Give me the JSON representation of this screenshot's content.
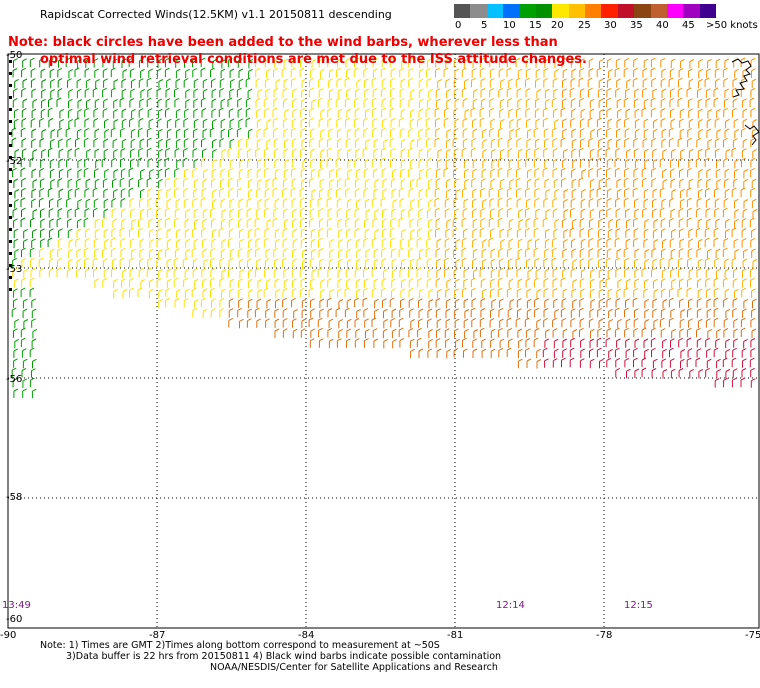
{
  "header": {
    "title": "Rapidscat Corrected Winds(12.5KM) v1.1 20150811 descending"
  },
  "legend": {
    "colors": [
      "#555555",
      "#8c8c8c",
      "#00c0ff",
      "#0070ff",
      "#00a000",
      "#009000",
      "#ffe800",
      "#ffc000",
      "#ff8000",
      "#ff2000",
      "#c0102a",
      "#8b4513",
      "#c06030",
      "#ff00ff",
      "#a000c0",
      "#400090"
    ],
    "labels": [
      "0",
      "5",
      "10",
      "15",
      "20",
      "25",
      "30",
      "35",
      "40",
      "45",
      ">50 knots"
    ]
  },
  "note": {
    "line1": "Note: black circles have been added to the wind barbs, wherever less than",
    "line2": "optimal wind retrieval conditions are met due to the ISS attitude changes."
  },
  "axes": {
    "x_ticks": [
      "-90",
      "-87",
      "-84",
      "-81",
      "-78",
      "-75"
    ],
    "y_ticks": [
      "-50",
      "-52",
      "-53",
      "-56",
      "-58",
      "-60"
    ]
  },
  "times": [
    "13:49",
    "12:14",
    "12:15"
  ],
  "footer": {
    "line1": "Note: 1) Times are GMT 2)Times along bottom correspond to measurement at ~50S",
    "line2": "3)Data buffer is 22 hrs from 20150811 4) Black wind barbs indicate possible contamination",
    "line3": "NOAA/NESDIS/Center for Satellite Applications and Research"
  }
}
